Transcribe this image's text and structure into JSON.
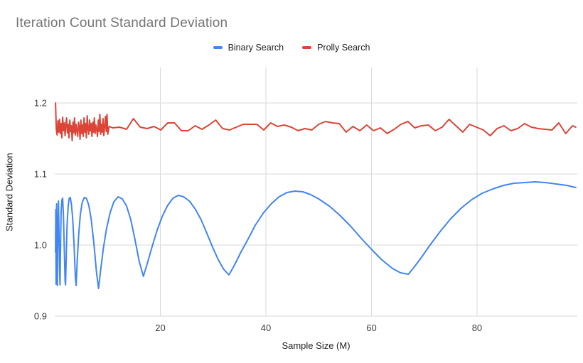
{
  "chart_data": {
    "type": "line",
    "title": "Iteration Count Standard Deviation",
    "title_color": "#757575",
    "xlabel": "Sample Size (M)",
    "ylabel": "Standard Deviation",
    "xlim": [
      0,
      99
    ],
    "ylim": [
      0.9,
      1.25
    ],
    "x_ticks": [
      20,
      40,
      60,
      80
    ],
    "y_ticks": [
      0.9,
      1.0,
      1.1,
      1.2
    ],
    "grid": true,
    "gridline_color": "#d9d9d9",
    "tick_label_color": "#424242",
    "legend_position": "top",
    "series": [
      {
        "name": "Binary Search",
        "color": "#4285f4",
        "points": [
          [
            0.15,
            0.99
          ],
          [
            0.2,
            1.05
          ],
          [
            0.25,
            0.945
          ],
          [
            0.3,
            1.02
          ],
          [
            0.35,
            1.058
          ],
          [
            0.42,
            0.975
          ],
          [
            0.5,
            0.943
          ],
          [
            0.58,
            1.02
          ],
          [
            0.7,
            1.062
          ],
          [
            0.82,
            1.01
          ],
          [
            0.92,
            0.965
          ],
          [
            1.0,
            0.944
          ],
          [
            1.1,
            1.0
          ],
          [
            1.2,
            1.045
          ],
          [
            1.35,
            1.063
          ],
          [
            1.5,
            1.066
          ],
          [
            1.65,
            1.04
          ],
          [
            1.8,
            0.995
          ],
          [
            1.95,
            0.95
          ],
          [
            2.05,
            0.944
          ],
          [
            2.2,
            0.99
          ],
          [
            2.35,
            1.03
          ],
          [
            2.55,
            1.055
          ],
          [
            2.75,
            1.066
          ],
          [
            2.95,
            1.067
          ],
          [
            3.15,
            1.058
          ],
          [
            3.4,
            1.038
          ],
          [
            3.65,
            1.002
          ],
          [
            3.9,
            0.955
          ],
          [
            4.05,
            0.943
          ],
          [
            4.25,
            0.978
          ],
          [
            4.55,
            1.016
          ],
          [
            4.85,
            1.043
          ],
          [
            5.2,
            1.06
          ],
          [
            5.6,
            1.067
          ],
          [
            6.0,
            1.066
          ],
          [
            6.45,
            1.056
          ],
          [
            6.9,
            1.037
          ],
          [
            7.4,
            1.004
          ],
          [
            7.9,
            0.962
          ],
          [
            8.3,
            0.939
          ],
          [
            8.7,
            0.965
          ],
          [
            9.2,
            0.995
          ],
          [
            9.8,
            1.023
          ],
          [
            10.5,
            1.046
          ],
          [
            11.2,
            1.061
          ],
          [
            12.0,
            1.068
          ],
          [
            12.8,
            1.065
          ],
          [
            13.6,
            1.055
          ],
          [
            14.4,
            1.036
          ],
          [
            15.2,
            1.008
          ],
          [
            16.0,
            0.977
          ],
          [
            16.8,
            0.956
          ],
          [
            17.6,
            0.976
          ],
          [
            18.5,
            0.999
          ],
          [
            19.4,
            1.021
          ],
          [
            20.4,
            1.041
          ],
          [
            21.4,
            1.056
          ],
          [
            22.4,
            1.066
          ],
          [
            23.4,
            1.07
          ],
          [
            24.4,
            1.068
          ],
          [
            25.5,
            1.062
          ],
          [
            26.6,
            1.051
          ],
          [
            27.7,
            1.036
          ],
          [
            28.8,
            1.017
          ],
          [
            29.9,
            0.997
          ],
          [
            31.0,
            0.979
          ],
          [
            32.0,
            0.966
          ],
          [
            33.0,
            0.958
          ],
          [
            34.0,
            0.971
          ],
          [
            35.2,
            0.989
          ],
          [
            36.6,
            1.008
          ],
          [
            38.0,
            1.028
          ],
          [
            39.5,
            1.045
          ],
          [
            41.0,
            1.058
          ],
          [
            42.5,
            1.068
          ],
          [
            44.0,
            1.074
          ],
          [
            45.5,
            1.076
          ],
          [
            47.0,
            1.075
          ],
          [
            48.5,
            1.071
          ],
          [
            50.0,
            1.065
          ],
          [
            52.0,
            1.055
          ],
          [
            54.0,
            1.042
          ],
          [
            56.0,
            1.027
          ],
          [
            58.0,
            1.01
          ],
          [
            60.0,
            0.994
          ],
          [
            62.0,
            0.979
          ],
          [
            64.0,
            0.967
          ],
          [
            65.5,
            0.961
          ],
          [
            67.0,
            0.959
          ],
          [
            68.2,
            0.97
          ],
          [
            69.5,
            0.983
          ],
          [
            71.0,
            0.999
          ],
          [
            73.0,
            1.019
          ],
          [
            75.0,
            1.037
          ],
          [
            77.0,
            1.052
          ],
          [
            79.0,
            1.064
          ],
          [
            81.0,
            1.073
          ],
          [
            83.0,
            1.079
          ],
          [
            85.0,
            1.084
          ],
          [
            87.0,
            1.087
          ],
          [
            89.0,
            1.088
          ],
          [
            91.0,
            1.089
          ],
          [
            93.0,
            1.088
          ],
          [
            95.0,
            1.086
          ],
          [
            97.0,
            1.084
          ],
          [
            98.7,
            1.081
          ]
        ]
      },
      {
        "name": "Prolly Search",
        "color": "#db4437",
        "points": [
          [
            0.15,
            1.2
          ],
          [
            0.3,
            1.163
          ],
          [
            0.45,
            1.155
          ],
          [
            0.6,
            1.175
          ],
          [
            0.75,
            1.159
          ],
          [
            0.9,
            1.177
          ],
          [
            1.05,
            1.157
          ],
          [
            1.2,
            1.171
          ],
          [
            1.35,
            1.151
          ],
          [
            1.5,
            1.18
          ],
          [
            1.65,
            1.161
          ],
          [
            1.8,
            1.172
          ],
          [
            1.95,
            1.154
          ],
          [
            2.1,
            1.169
          ],
          [
            2.25,
            1.179
          ],
          [
            2.4,
            1.158
          ],
          [
            2.55,
            1.17
          ],
          [
            2.7,
            1.151
          ],
          [
            2.85,
            1.176
          ],
          [
            3.0,
            1.16
          ],
          [
            3.15,
            1.168
          ],
          [
            3.3,
            1.147
          ],
          [
            3.45,
            1.173
          ],
          [
            3.6,
            1.158
          ],
          [
            3.75,
            1.179
          ],
          [
            3.9,
            1.155
          ],
          [
            4.05,
            1.17
          ],
          [
            4.2,
            1.161
          ],
          [
            4.35,
            1.153
          ],
          [
            4.5,
            1.173
          ],
          [
            4.65,
            1.167
          ],
          [
            4.8,
            1.149
          ],
          [
            4.95,
            1.176
          ],
          [
            5.1,
            1.157
          ],
          [
            5.25,
            1.169
          ],
          [
            5.4,
            1.153
          ],
          [
            5.55,
            1.179
          ],
          [
            5.7,
            1.159
          ],
          [
            5.85,
            1.171
          ],
          [
            6.0,
            1.151
          ],
          [
            6.15,
            1.182
          ],
          [
            6.3,
            1.163
          ],
          [
            6.45,
            1.156
          ],
          [
            6.6,
            1.176
          ],
          [
            6.75,
            1.161
          ],
          [
            6.9,
            1.171
          ],
          [
            7.05,
            1.153
          ],
          [
            7.2,
            1.173
          ],
          [
            7.35,
            1.159
          ],
          [
            7.5,
            1.179
          ],
          [
            7.65,
            1.157
          ],
          [
            7.8,
            1.169
          ],
          [
            7.95,
            1.163
          ],
          [
            8.1,
            1.153
          ],
          [
            8.25,
            1.176
          ],
          [
            8.4,
            1.16
          ],
          [
            8.55,
            1.184
          ],
          [
            8.7,
            1.156
          ],
          [
            8.85,
            1.17
          ],
          [
            9.0,
            1.159
          ],
          [
            9.15,
            1.178
          ],
          [
            9.3,
            1.154
          ],
          [
            9.45,
            1.167
          ],
          [
            9.6,
            1.181
          ],
          [
            9.75,
            1.16
          ],
          [
            9.9,
            1.184
          ],
          [
            10.05,
            1.156
          ],
          [
            10.3,
            1.167
          ],
          [
            11.0,
            1.165
          ],
          [
            12.3,
            1.166
          ],
          [
            13.6,
            1.163
          ],
          [
            14.9,
            1.178
          ],
          [
            16.2,
            1.166
          ],
          [
            17.5,
            1.164
          ],
          [
            18.8,
            1.167
          ],
          [
            20.1,
            1.162
          ],
          [
            21.4,
            1.172
          ],
          [
            22.7,
            1.172
          ],
          [
            24.0,
            1.161
          ],
          [
            25.3,
            1.161
          ],
          [
            26.6,
            1.168
          ],
          [
            27.9,
            1.163
          ],
          [
            29.2,
            1.169
          ],
          [
            30.5,
            1.176
          ],
          [
            31.8,
            1.164
          ],
          [
            33.1,
            1.162
          ],
          [
            34.4,
            1.166
          ],
          [
            35.7,
            1.17
          ],
          [
            37.0,
            1.17
          ],
          [
            38.3,
            1.17
          ],
          [
            39.6,
            1.162
          ],
          [
            40.9,
            1.172
          ],
          [
            42.2,
            1.167
          ],
          [
            43.5,
            1.169
          ],
          [
            44.8,
            1.166
          ],
          [
            46.1,
            1.161
          ],
          [
            47.4,
            1.164
          ],
          [
            48.7,
            1.162
          ],
          [
            50.0,
            1.17
          ],
          [
            51.3,
            1.174
          ],
          [
            52.6,
            1.172
          ],
          [
            53.9,
            1.171
          ],
          [
            55.2,
            1.159
          ],
          [
            56.5,
            1.167
          ],
          [
            57.8,
            1.161
          ],
          [
            59.1,
            1.169
          ],
          [
            60.4,
            1.161
          ],
          [
            61.7,
            1.165
          ],
          [
            63.0,
            1.157
          ],
          [
            64.3,
            1.163
          ],
          [
            65.6,
            1.17
          ],
          [
            66.9,
            1.174
          ],
          [
            68.2,
            1.165
          ],
          [
            69.5,
            1.168
          ],
          [
            70.8,
            1.169
          ],
          [
            72.1,
            1.161
          ],
          [
            73.4,
            1.166
          ],
          [
            74.7,
            1.177
          ],
          [
            76.0,
            1.168
          ],
          [
            77.3,
            1.159
          ],
          [
            78.6,
            1.17
          ],
          [
            79.9,
            1.166
          ],
          [
            81.2,
            1.162
          ],
          [
            82.5,
            1.154
          ],
          [
            83.8,
            1.164
          ],
          [
            85.1,
            1.168
          ],
          [
            86.4,
            1.161
          ],
          [
            87.7,
            1.164
          ],
          [
            89.0,
            1.171
          ],
          [
            90.3,
            1.166
          ],
          [
            91.6,
            1.164
          ],
          [
            92.9,
            1.163
          ],
          [
            94.2,
            1.162
          ],
          [
            95.5,
            1.172
          ],
          [
            96.8,
            1.157
          ],
          [
            98.1,
            1.168
          ],
          [
            98.7,
            1.166
          ]
        ]
      }
    ]
  }
}
